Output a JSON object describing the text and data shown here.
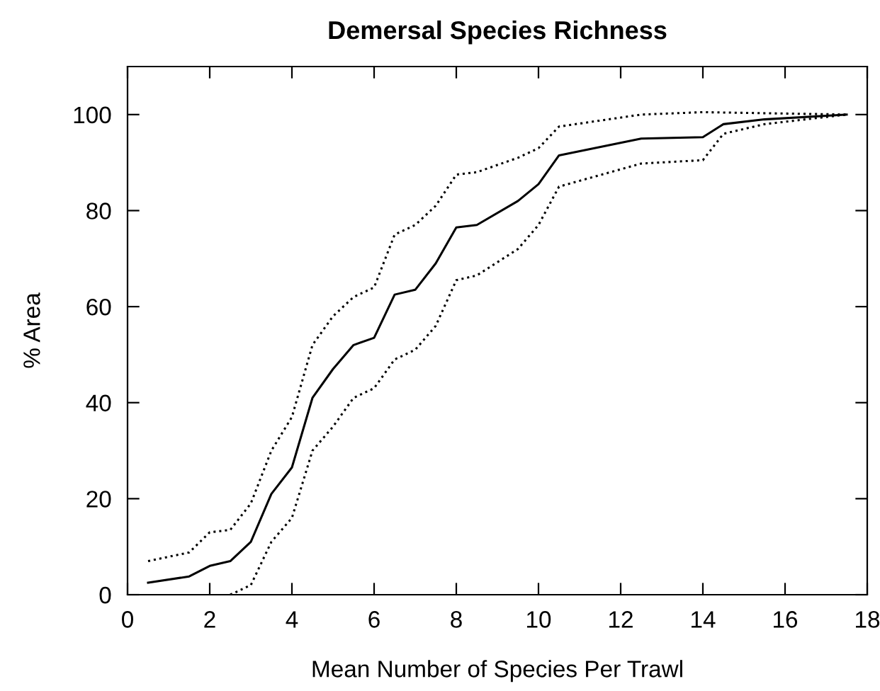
{
  "chart_data": {
    "type": "line",
    "title": "Demersal Species Richness",
    "xlabel": "Mean Number of Species Per Trawl",
    "ylabel": "% Area",
    "xlim": [
      0,
      18
    ],
    "ylim": [
      0,
      110
    ],
    "xticks": [
      0,
      2,
      4,
      6,
      8,
      10,
      12,
      14,
      16,
      18
    ],
    "yticks": [
      0,
      20,
      40,
      60,
      80,
      100
    ],
    "grid": false,
    "legend": false,
    "marker": "none",
    "series": [
      {
        "color": "#000000",
        "line_style": "solid",
        "x": [
          0.5,
          1.5,
          2,
          2.5,
          3,
          3.5,
          4,
          4.5,
          5,
          5.5,
          6,
          6.5,
          7,
          7.5,
          8,
          8.5,
          9.5,
          10,
          10.5,
          12.5,
          14,
          14.5,
          15.5,
          17.5
        ],
        "values": [
          2.5,
          3.8,
          6,
          7,
          11,
          21,
          26.5,
          41,
          47,
          52,
          53.5,
          62.5,
          63.5,
          69,
          76.5,
          77,
          82,
          85.5,
          91.5,
          95,
          95.3,
          98,
          99,
          100
        ]
      },
      {
        "color": "#000000",
        "line_style": "dotted",
        "x": [
          0.5,
          1.5,
          2,
          2.5,
          3,
          3.5,
          4,
          4.5,
          5,
          5.5,
          6,
          6.5,
          7,
          7.5,
          8,
          8.5,
          9.5,
          10,
          10.5,
          12.5,
          14,
          17.5
        ],
        "values": [
          7,
          8.8,
          13,
          13.5,
          19,
          30,
          37,
          52,
          58,
          62,
          64,
          75,
          77,
          81,
          87.5,
          88,
          91,
          93,
          97.5,
          100,
          100.5,
          100
        ]
      },
      {
        "color": "#000000",
        "line_style": "dotted",
        "x": [
          2.5,
          3,
          3.5,
          4,
          4.5,
          5,
          5.5,
          6,
          6.5,
          7,
          7.5,
          8,
          8.5,
          9.5,
          10,
          10.5,
          12.5,
          14,
          14.5,
          15.5,
          17.5
        ],
        "values": [
          0,
          2,
          11,
          16,
          30,
          35,
          41,
          43,
          49,
          51,
          56,
          65.5,
          66.5,
          72,
          77,
          85,
          89.8,
          90.5,
          96,
          98,
          100
        ]
      }
    ]
  }
}
